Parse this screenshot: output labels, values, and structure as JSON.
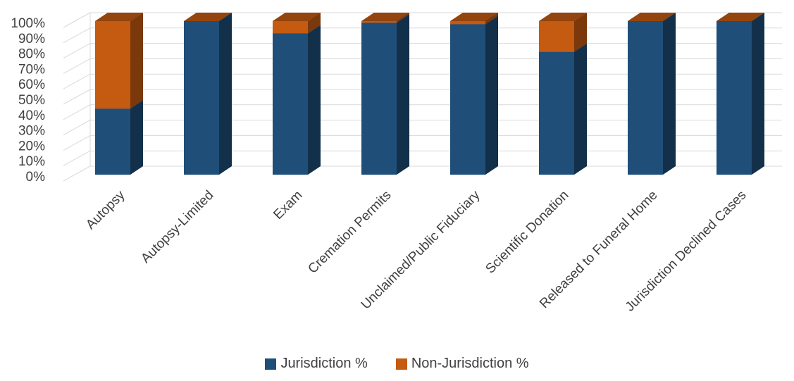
{
  "chart_data": {
    "type": "bar",
    "stacked": true,
    "style": "3d-column",
    "categories": [
      "Autopsy",
      "Autopsy-Limited",
      "Exam",
      "Cremation Permits",
      "Unclaimed/Public Fiduciary",
      "Scientific Donation",
      "Released to Funeral Home",
      "Jurisdiction Declined Cases"
    ],
    "series": [
      {
        "name": "Jurisdiction %",
        "color": "#1f4e79",
        "values": [
          43,
          100,
          92,
          99,
          98,
          80,
          100,
          100
        ]
      },
      {
        "name": "Non-Jurisdiction %",
        "color": "#c55a11",
        "values": [
          57,
          0,
          8,
          1,
          2,
          20,
          0,
          0
        ]
      }
    ],
    "ylim": [
      0,
      100
    ],
    "yticks": [
      "0%",
      "10%",
      "20%",
      "30%",
      "40%",
      "50%",
      "60%",
      "70%",
      "80%",
      "90%",
      "100%"
    ],
    "grid": true,
    "legend_position": "bottom"
  }
}
